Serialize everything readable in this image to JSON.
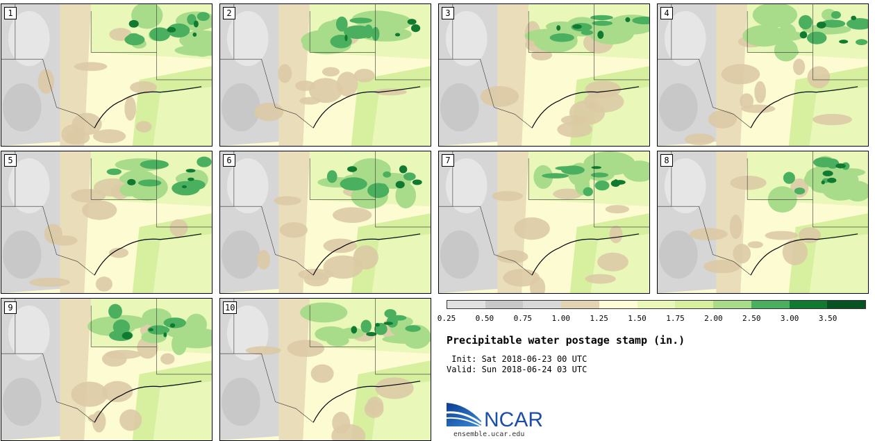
{
  "panels": [
    {
      "label": "1"
    },
    {
      "label": "2"
    },
    {
      "label": "3"
    },
    {
      "label": "4"
    },
    {
      "label": "5"
    },
    {
      "label": "6"
    },
    {
      "label": "7"
    },
    {
      "label": "8"
    },
    {
      "label": "9"
    },
    {
      "label": "10"
    }
  ],
  "colorbar": {
    "ticks": [
      "0.25",
      "0.50",
      "0.75",
      "1.00",
      "1.25",
      "1.50",
      "1.75",
      "2.00",
      "2.50",
      "3.00",
      "3.50"
    ],
    "colors": [
      "#e1e1e1",
      "#c8c8c8",
      "#d9d9d9",
      "#e2d3b3",
      "#fffdd4",
      "#e9f7b8",
      "#d6f0a0",
      "#a8dc8a",
      "#4aaf5e",
      "#0f7a30",
      "#075221",
      "#1530b0"
    ]
  },
  "title": "Precipitable water postage stamp (in.)",
  "init": " Init: Sat 2018-06-23 00 UTC",
  "valid": "Valid: Sun 2018-06-24 03 UTC",
  "logo": {
    "text": "NCAR",
    "url": "ensemble.ucar.edu",
    "color": "#1a4ea8"
  }
}
